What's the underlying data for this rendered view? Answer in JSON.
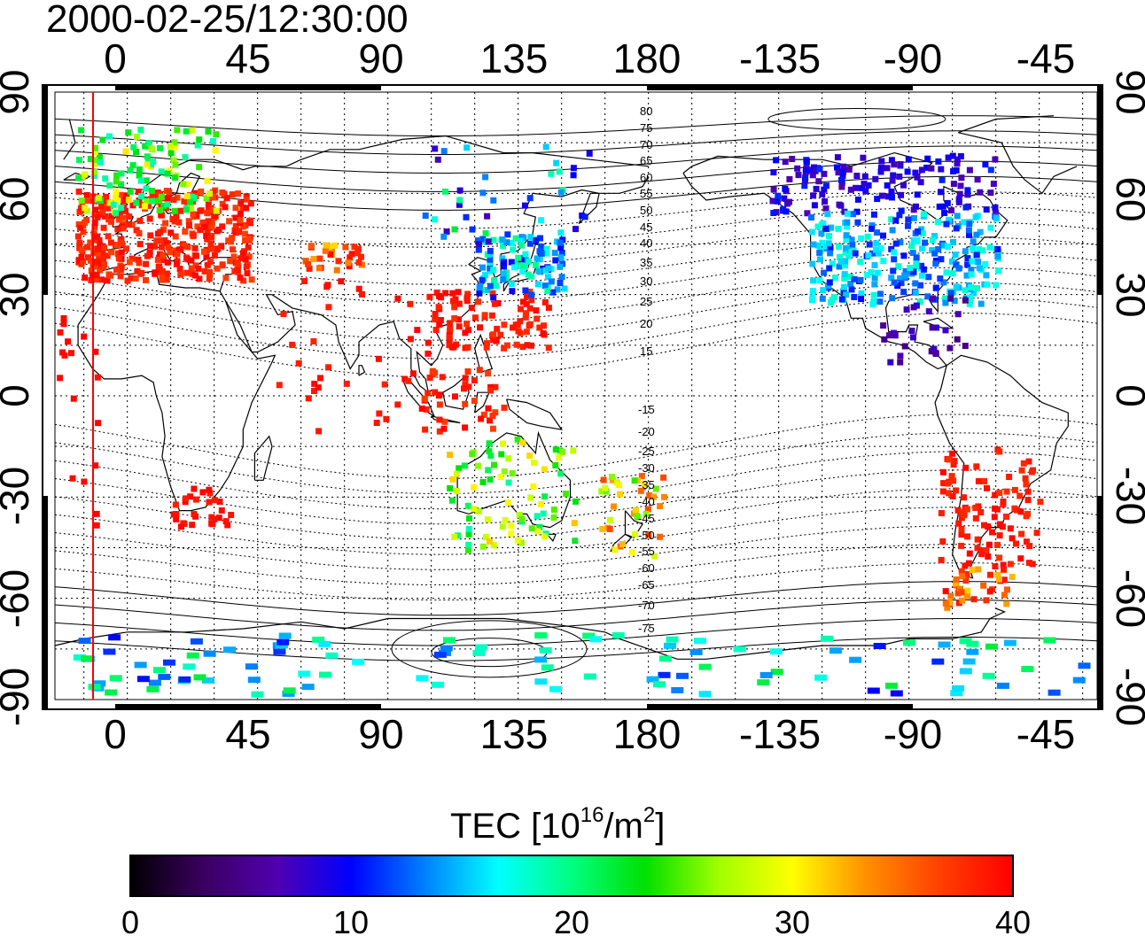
{
  "timestamp": "2000-02-25/12:30:00",
  "axes": {
    "top_lon_ticks": [
      "0",
      "45",
      "90",
      "135",
      "180",
      "-135",
      "-90",
      "-45"
    ],
    "bottom_lon_ticks": [
      "0",
      "45",
      "90",
      "135",
      "180",
      "-135",
      "-90",
      "-45"
    ],
    "left_lat_ticks": [
      "90",
      "60",
      "30",
      "0",
      "-30",
      "-60",
      "-90"
    ],
    "right_lat_ticks": [
      "90",
      "60",
      "30",
      "0",
      "-30",
      "-60",
      "-90"
    ]
  },
  "contour_labels": {
    "north": [
      "80",
      "75",
      "70",
      "65",
      "60",
      "55",
      "50",
      "45",
      "40",
      "35",
      "30",
      "25",
      "20",
      "15"
    ],
    "south": [
      "-15",
      "-20",
      "-25",
      "-30",
      "-35",
      "-40",
      "-45",
      "-50",
      "-55",
      "-60",
      "-65",
      "-70",
      "-75"
    ]
  },
  "colorbar": {
    "title_main": "TEC  [10",
    "title_sup1": "16",
    "title_mid": "/m",
    "title_sup2": "2",
    "title_end": "]",
    "tick_labels": [
      "0",
      "10",
      "20",
      "30",
      "40"
    ],
    "stops": [
      "#000000",
      "#3a0060",
      "#5000b0",
      "#0000ff",
      "#0080ff",
      "#00ffff",
      "#00ff80",
      "#00e000",
      "#a0ff00",
      "#ffff00",
      "#ff9000",
      "#ff4000",
      "#ff0000"
    ]
  },
  "reference_line_color": "#ff0000",
  "chart_data": {
    "type": "heatmap",
    "title": "2000-02-25/12:30:00",
    "colorbar_label": "TEC [10^16/m^2]",
    "value_range": [
      0,
      40
    ],
    "lon_range": [
      -25,
      335
    ],
    "lat_range": [
      -90,
      90
    ],
    "regions": [
      {
        "name": "Europe",
        "lon": [
          -15,
          40
        ],
        "lat": [
          35,
          70
        ],
        "tec_approx": "35-40"
      },
      {
        "name": "North Europe/Scandinavia",
        "lon": [
          -15,
          30
        ],
        "lat": [
          55,
          80
        ],
        "tec_approx": "20-28"
      },
      {
        "name": "Southern Africa",
        "lon": [
          15,
          35
        ],
        "lat": [
          -38,
          -25
        ],
        "tec_approx": "38-40"
      },
      {
        "name": "East Asia",
        "lon": [
          120,
          150
        ],
        "lat": [
          20,
          40
        ],
        "tec_approx": "38-40"
      },
      {
        "name": "Japan",
        "lon": [
          130,
          150
        ],
        "lat": [
          30,
          50
        ],
        "tec_approx": "10-20"
      },
      {
        "name": "Australia",
        "lon": [
          115,
          155
        ],
        "lat": [
          -45,
          -10
        ],
        "tec_approx": "20-35"
      },
      {
        "name": "North America",
        "lon": [
          -130,
          -60
        ],
        "lat": [
          30,
          60
        ],
        "tec_approx": "5-18"
      },
      {
        "name": "South America",
        "lon": [
          -75,
          -40
        ],
        "lat": [
          -60,
          -15
        ],
        "tec_approx": "35-40"
      },
      {
        "name": "Antarctica",
        "lon": [
          -25,
          335
        ],
        "lat": [
          -90,
          -70
        ],
        "tec_approx": "10-22"
      }
    ],
    "reference_longitude": -7.5
  }
}
